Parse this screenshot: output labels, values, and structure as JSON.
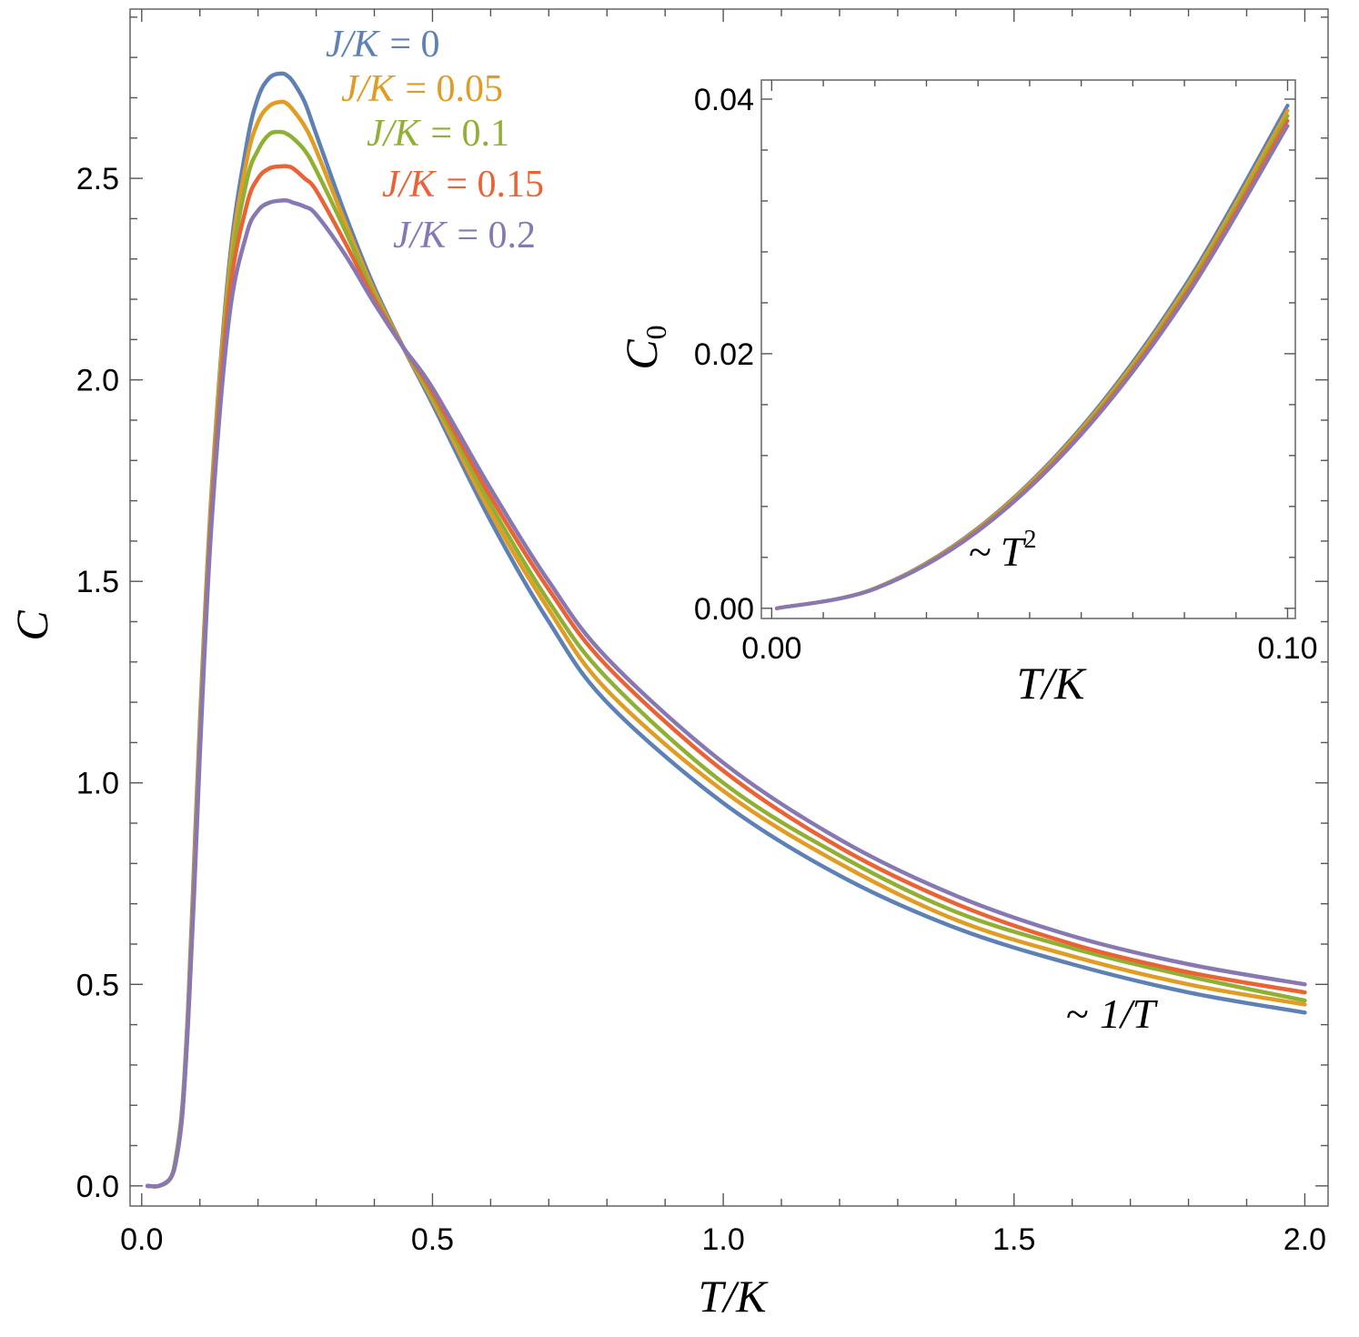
{
  "chart_data": [
    {
      "id": "main",
      "type": "line",
      "title": "",
      "xlabel": "T/K",
      "ylabel": "C",
      "xlim": [
        -0.02,
        2.04
      ],
      "ylim": [
        -0.05,
        2.92
      ],
      "xticks": [
        0.0,
        0.5,
        1.0,
        1.5,
        2.0
      ],
      "xtick_labels": [
        "0.0",
        "0.5",
        "1.0",
        "1.5",
        "2.0"
      ],
      "yticks": [
        0.0,
        0.5,
        1.0,
        1.5,
        2.0,
        2.5
      ],
      "ytick_labels": [
        "0.0",
        "0.5",
        "1.0",
        "1.5",
        "2.0",
        "2.5"
      ],
      "grid": false,
      "series": [
        {
          "name": "J/K = 0",
          "label_parts": [
            "J/K",
            "= 0"
          ],
          "color": "#5e81b5",
          "x": [
            0.01,
            0.03,
            0.05,
            0.06,
            0.07,
            0.08,
            0.09,
            0.1,
            0.12,
            0.15,
            0.18,
            0.2,
            0.22,
            0.24,
            0.25,
            0.26,
            0.28,
            0.3,
            0.35,
            0.4,
            0.45,
            0.5,
            0.6,
            0.7,
            0.8,
            1.0,
            1.2,
            1.4,
            1.6,
            1.8,
            2.0
          ],
          "values": [
            0.0,
            0.0,
            0.02,
            0.08,
            0.2,
            0.45,
            0.8,
            1.15,
            1.72,
            2.28,
            2.58,
            2.7,
            2.75,
            2.76,
            2.755,
            2.74,
            2.69,
            2.61,
            2.41,
            2.23,
            2.08,
            1.94,
            1.65,
            1.4,
            1.2,
            0.95,
            0.77,
            0.64,
            0.55,
            0.48,
            0.43
          ]
        },
        {
          "name": "J/K = 0.05",
          "label_parts": [
            "J/K",
            "= 0.05"
          ],
          "color": "#e19c24",
          "x": [
            0.01,
            0.03,
            0.05,
            0.06,
            0.07,
            0.08,
            0.09,
            0.1,
            0.12,
            0.15,
            0.18,
            0.2,
            0.22,
            0.24,
            0.25,
            0.26,
            0.28,
            0.3,
            0.35,
            0.4,
            0.45,
            0.5,
            0.6,
            0.7,
            0.8,
            1.0,
            1.2,
            1.4,
            1.6,
            1.8,
            2.0
          ],
          "values": [
            0.0,
            0.0,
            0.02,
            0.08,
            0.19,
            0.44,
            0.78,
            1.13,
            1.71,
            2.26,
            2.54,
            2.64,
            2.68,
            2.69,
            2.685,
            2.67,
            2.63,
            2.57,
            2.39,
            2.22,
            2.08,
            1.95,
            1.67,
            1.43,
            1.23,
            0.98,
            0.8,
            0.66,
            0.57,
            0.5,
            0.45
          ]
        },
        {
          "name": "J/K = 0.1",
          "label_parts": [
            "J/K",
            "= 0.1"
          ],
          "color": "#8fb032",
          "x": [
            0.01,
            0.03,
            0.05,
            0.06,
            0.07,
            0.08,
            0.09,
            0.1,
            0.12,
            0.15,
            0.18,
            0.2,
            0.22,
            0.24,
            0.25,
            0.26,
            0.28,
            0.3,
            0.35,
            0.4,
            0.45,
            0.5,
            0.6,
            0.7,
            0.8,
            1.0,
            1.2,
            1.4,
            1.6,
            1.8,
            2.0
          ],
          "values": [
            0.0,
            0.0,
            0.02,
            0.08,
            0.19,
            0.43,
            0.76,
            1.11,
            1.69,
            2.23,
            2.49,
            2.57,
            2.61,
            2.615,
            2.61,
            2.6,
            2.57,
            2.52,
            2.37,
            2.21,
            2.08,
            1.96,
            1.69,
            1.45,
            1.26,
            1.0,
            0.82,
            0.68,
            0.59,
            0.52,
            0.46
          ]
        },
        {
          "name": "J/K = 0.15",
          "label_parts": [
            "J/K",
            "= 0.15"
          ],
          "color": "#eb6235",
          "x": [
            0.01,
            0.03,
            0.05,
            0.06,
            0.07,
            0.08,
            0.09,
            0.1,
            0.12,
            0.15,
            0.18,
            0.2,
            0.22,
            0.24,
            0.25,
            0.26,
            0.28,
            0.3,
            0.35,
            0.4,
            0.45,
            0.5,
            0.6,
            0.7,
            0.8,
            1.0,
            1.2,
            1.4,
            1.6,
            1.8,
            2.0
          ],
          "values": [
            0.0,
            0.0,
            0.02,
            0.07,
            0.18,
            0.42,
            0.74,
            1.09,
            1.67,
            2.2,
            2.43,
            2.5,
            2.525,
            2.53,
            2.53,
            2.525,
            2.5,
            2.47,
            2.34,
            2.2,
            2.08,
            1.97,
            1.71,
            1.48,
            1.29,
            1.03,
            0.84,
            0.7,
            0.6,
            0.53,
            0.48
          ]
        },
        {
          "name": "J/K = 0.2",
          "label_parts": [
            "J/K",
            "= 0.2"
          ],
          "color": "#8778b3",
          "x": [
            0.01,
            0.03,
            0.05,
            0.06,
            0.07,
            0.08,
            0.09,
            0.1,
            0.12,
            0.15,
            0.18,
            0.2,
            0.22,
            0.24,
            0.25,
            0.26,
            0.28,
            0.3,
            0.35,
            0.4,
            0.45,
            0.5,
            0.6,
            0.7,
            0.8,
            1.0,
            1.2,
            1.4,
            1.6,
            1.8,
            2.0
          ],
          "values": [
            0.0,
            0.0,
            0.02,
            0.07,
            0.18,
            0.41,
            0.72,
            1.07,
            1.64,
            2.15,
            2.36,
            2.42,
            2.44,
            2.445,
            2.445,
            2.44,
            2.43,
            2.41,
            2.31,
            2.19,
            2.08,
            1.98,
            1.73,
            1.5,
            1.31,
            1.05,
            0.86,
            0.72,
            0.62,
            0.55,
            0.5
          ]
        }
      ],
      "annotations": [
        {
          "text": "~ 1/T",
          "parts": [
            "~",
            "1/T"
          ],
          "near": "right end of curves"
        }
      ]
    },
    {
      "id": "inset",
      "type": "line",
      "title": "",
      "xlabel": "T/K",
      "ylabel": "C",
      "ylabel_subscript": "0",
      "xlim": [
        -0.002,
        0.1015
      ],
      "ylim": [
        -0.0008,
        0.0415
      ],
      "xticks": [
        0.0,
        0.1
      ],
      "xtick_labels": [
        "0.00",
        "0.10"
      ],
      "yticks": [
        0.0,
        0.02,
        0.04
      ],
      "ytick_labels": [
        "0.00",
        "0.02",
        "0.04"
      ],
      "grid": false,
      "series": [
        {
          "name": "J/K = 0",
          "color": "#5e81b5",
          "x": [
            0.001,
            0.02,
            0.04,
            0.06,
            0.08,
            0.1
          ],
          "values": [
            0.0,
            0.00158,
            0.00632,
            0.01422,
            0.02528,
            0.0395
          ]
        },
        {
          "name": "J/K = 0.05",
          "color": "#e19c24",
          "x": [
            0.001,
            0.02,
            0.04,
            0.06,
            0.08,
            0.1
          ],
          "values": [
            0.0,
            0.00156,
            0.00626,
            0.01408,
            0.02502,
            0.0391
          ]
        },
        {
          "name": "J/K = 0.1",
          "color": "#8fb032",
          "x": [
            0.001,
            0.02,
            0.04,
            0.06,
            0.08,
            0.1
          ],
          "values": [
            0.0,
            0.00155,
            0.0062,
            0.01393,
            0.02477,
            0.0387
          ]
        },
        {
          "name": "J/K = 0.15",
          "color": "#eb6235",
          "x": [
            0.001,
            0.02,
            0.04,
            0.06,
            0.08,
            0.1
          ],
          "values": [
            0.0,
            0.00153,
            0.00613,
            0.01379,
            0.02451,
            0.0383
          ]
        },
        {
          "name": "J/K = 0.2",
          "color": "#8778b3",
          "x": [
            0.001,
            0.02,
            0.04,
            0.06,
            0.08,
            0.1
          ],
          "values": [
            0.0,
            0.00152,
            0.00606,
            0.01364,
            0.02426,
            0.0379
          ]
        }
      ],
      "annotations": [
        {
          "text": "~ T^2",
          "parts": [
            "~",
            "T",
            "2"
          ],
          "near": "lower middle"
        }
      ]
    }
  ]
}
